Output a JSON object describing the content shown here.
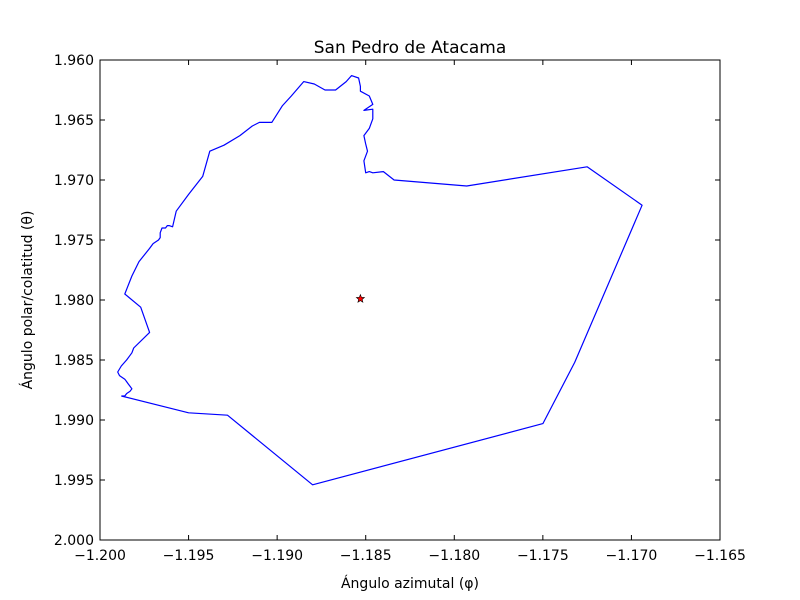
{
  "chart_data": {
    "type": "line",
    "title": "San Pedro de Atacama",
    "xlabel": "Ángulo azimutal (φ)",
    "ylabel": "Ángulo polar/colatitud (θ)",
    "xlim": [
      -1.2,
      -1.165
    ],
    "ylim": [
      2.0,
      1.96
    ],
    "y_inverted": true,
    "grid": false,
    "x_ticks": [
      -1.2,
      -1.195,
      -1.19,
      -1.185,
      -1.18,
      -1.175,
      -1.17,
      -1.165
    ],
    "x_tick_labels": [
      "−1.200",
      "−1.195",
      "−1.190",
      "−1.185",
      "−1.180",
      "−1.175",
      "−1.170",
      "−1.165"
    ],
    "y_ticks": [
      1.96,
      1.965,
      1.97,
      1.975,
      1.98,
      1.985,
      1.99,
      1.995,
      2.0
    ],
    "y_tick_labels": [
      "1.960",
      "1.965",
      "1.970",
      "1.975",
      "1.980",
      "1.985",
      "1.990",
      "1.995",
      "2.000"
    ],
    "series": [
      {
        "color": "#0000ff",
        "marker": "none",
        "x": [
          -1.1988,
          -1.195,
          -1.1928,
          -1.188,
          -1.175,
          -1.1732,
          -1.1694,
          -1.1725,
          -1.1793,
          -1.1834,
          -1.184,
          -1.1846,
          -1.1848,
          -1.185,
          -1.1851,
          -1.1849,
          -1.185,
          -1.1851,
          -1.1848,
          -1.1846,
          -1.1846,
          -1.1851,
          -1.1846,
          -1.1848,
          -1.1853,
          -1.1853,
          -1.1854,
          -1.1858,
          -1.1861,
          -1.1867,
          -1.1873,
          -1.1879,
          -1.1885,
          -1.1892,
          -1.1897,
          -1.1903,
          -1.1907,
          -1.191,
          -1.1914,
          -1.1921,
          -1.193,
          -1.1938,
          -1.1942,
          -1.195,
          -1.1957,
          -1.1959,
          -1.1961,
          -1.1962,
          -1.1963,
          -1.1965,
          -1.1966,
          -1.1966,
          -1.1967,
          -1.197,
          -1.1972,
          -1.1978,
          -1.1982,
          -1.1986,
          -1.1977,
          -1.1972,
          -1.1981,
          -1.1982,
          -1.1985,
          -1.1988,
          -1.199,
          -1.1989,
          -1.1986,
          -1.1985,
          -1.1984,
          -1.1983,
          -1.1982,
          -1.1983,
          -1.1985,
          -1.1986,
          -1.1987,
          -1.1988
        ],
        "y": [
          1.988,
          1.9894,
          1.9896,
          1.9954,
          1.9903,
          1.9852,
          1.9721,
          1.9689,
          1.9705,
          1.97,
          1.9693,
          1.9694,
          1.9693,
          1.9694,
          1.9684,
          1.9676,
          1.967,
          1.9663,
          1.9657,
          1.9649,
          1.9641,
          1.9642,
          1.9637,
          1.963,
          1.9626,
          1.9622,
          1.9615,
          1.9613,
          1.9618,
          1.9625,
          1.9625,
          1.962,
          1.9618,
          1.963,
          1.9638,
          1.9652,
          1.9652,
          1.9652,
          1.9655,
          1.9663,
          1.9671,
          1.9676,
          1.9697,
          1.9712,
          1.9726,
          1.9739,
          1.9738,
          1.9738,
          1.974,
          1.974,
          1.9744,
          1.9748,
          1.975,
          1.9753,
          1.9757,
          1.9768,
          1.978,
          1.9795,
          1.9806,
          1.9827,
          1.984,
          1.9844,
          1.985,
          1.9855,
          1.986,
          1.9863,
          1.9866,
          1.9868,
          1.987,
          1.9872,
          1.9874,
          1.9876,
          1.9878,
          1.988,
          1.988,
          1.988
        ]
      },
      {
        "color": "#ff0000",
        "marker": "star",
        "x": [
          -1.1853
        ],
        "y": [
          1.9799
        ]
      }
    ]
  }
}
